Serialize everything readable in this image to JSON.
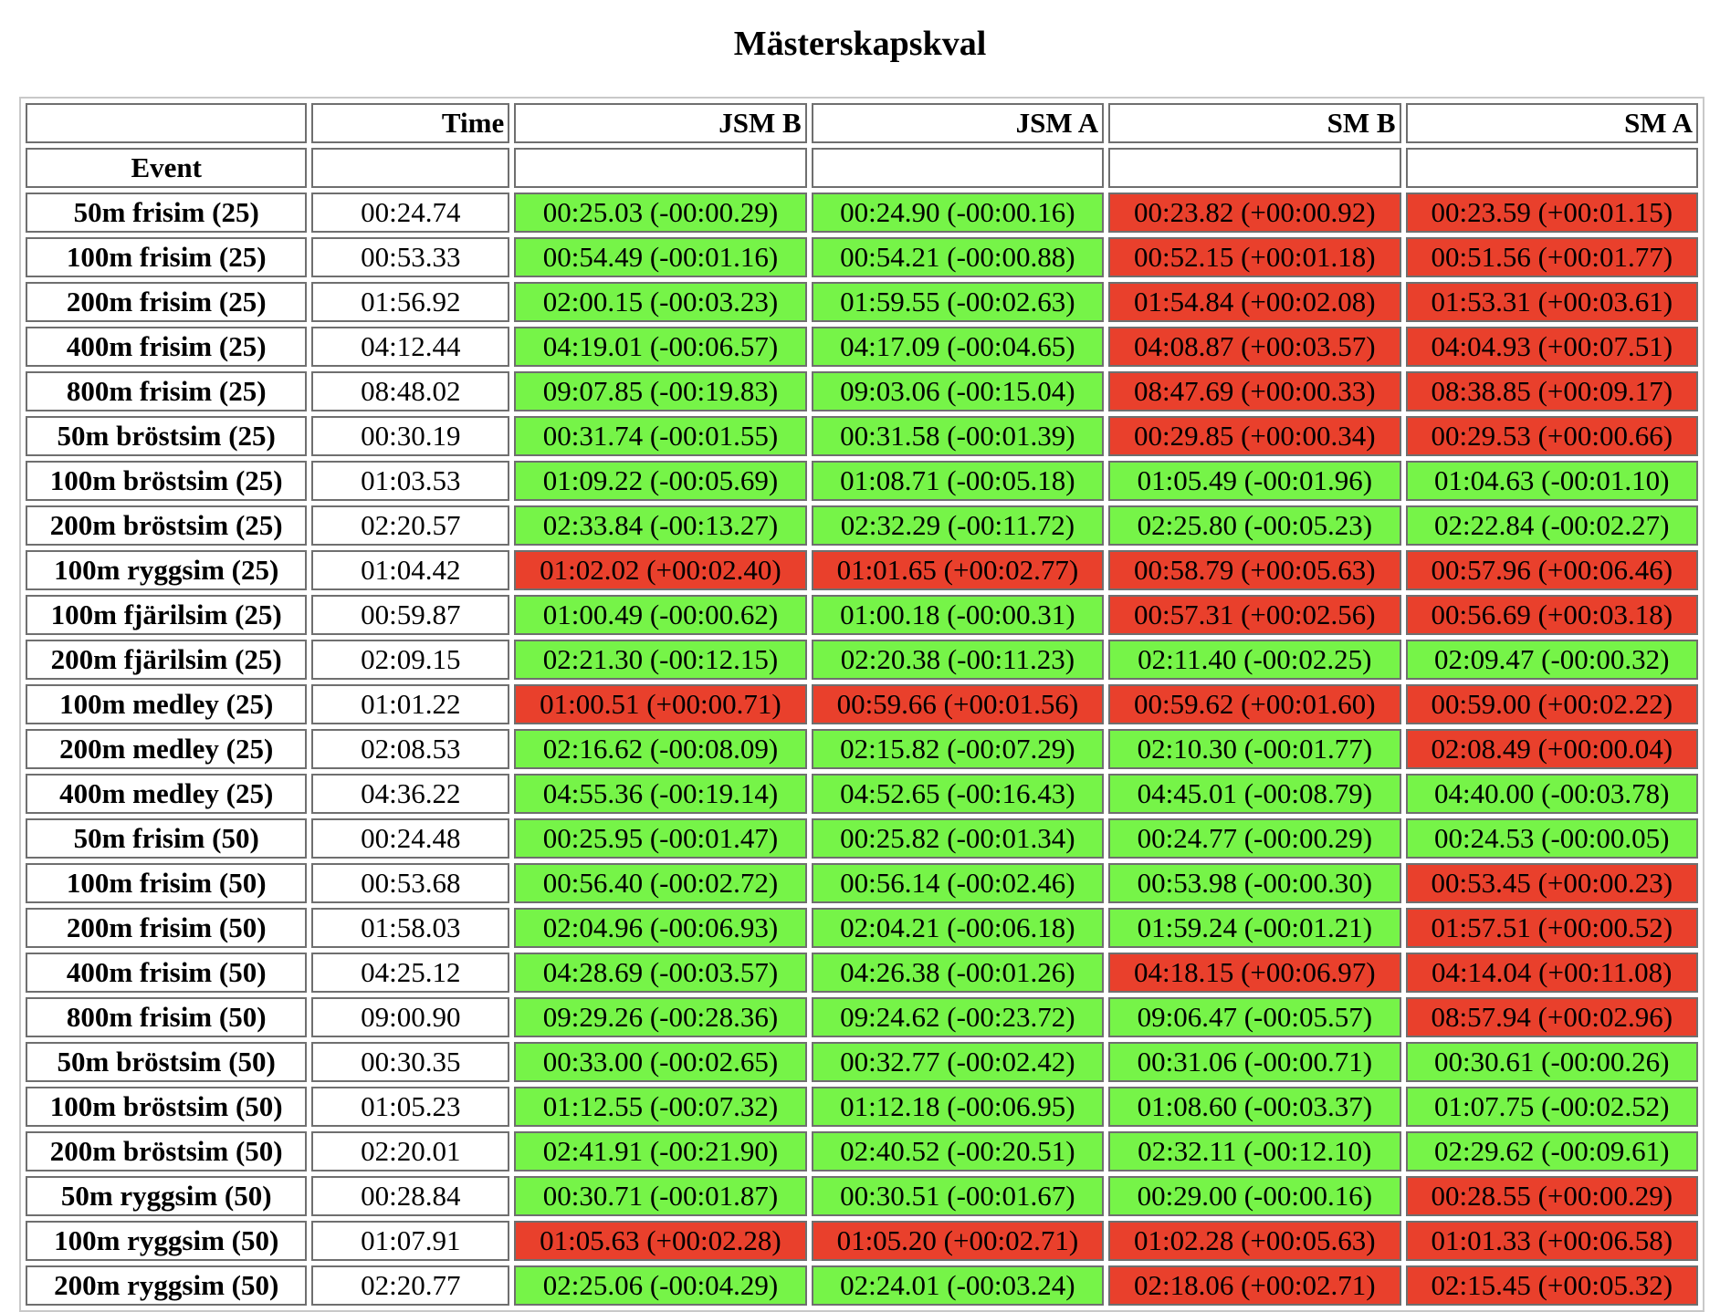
{
  "title": "Mästerskapskval",
  "columns": {
    "event": "Event",
    "time": "Time",
    "qualifications": [
      "JSM B",
      "JSM A",
      "SM B",
      "SM A"
    ]
  },
  "colors": {
    "pass": "#76f448",
    "fail": "#e9402c"
  },
  "rows": [
    {
      "event": "50m frisim (25)",
      "time": "00:24.74",
      "q": [
        {
          "text": "00:25.03 (-00:00.29)",
          "status": "pass"
        },
        {
          "text": "00:24.90 (-00:00.16)",
          "status": "pass"
        },
        {
          "text": "00:23.82 (+00:00.92)",
          "status": "fail"
        },
        {
          "text": "00:23.59 (+00:01.15)",
          "status": "fail"
        }
      ]
    },
    {
      "event": "100m frisim (25)",
      "time": "00:53.33",
      "q": [
        {
          "text": "00:54.49 (-00:01.16)",
          "status": "pass"
        },
        {
          "text": "00:54.21 (-00:00.88)",
          "status": "pass"
        },
        {
          "text": "00:52.15 (+00:01.18)",
          "status": "fail"
        },
        {
          "text": "00:51.56 (+00:01.77)",
          "status": "fail"
        }
      ]
    },
    {
      "event": "200m frisim (25)",
      "time": "01:56.92",
      "q": [
        {
          "text": "02:00.15 (-00:03.23)",
          "status": "pass"
        },
        {
          "text": "01:59.55 (-00:02.63)",
          "status": "pass"
        },
        {
          "text": "01:54.84 (+00:02.08)",
          "status": "fail"
        },
        {
          "text": "01:53.31 (+00:03.61)",
          "status": "fail"
        }
      ]
    },
    {
      "event": "400m frisim (25)",
      "time": "04:12.44",
      "q": [
        {
          "text": "04:19.01 (-00:06.57)",
          "status": "pass"
        },
        {
          "text": "04:17.09 (-00:04.65)",
          "status": "pass"
        },
        {
          "text": "04:08.87 (+00:03.57)",
          "status": "fail"
        },
        {
          "text": "04:04.93 (+00:07.51)",
          "status": "fail"
        }
      ]
    },
    {
      "event": "800m frisim (25)",
      "time": "08:48.02",
      "q": [
        {
          "text": "09:07.85 (-00:19.83)",
          "status": "pass"
        },
        {
          "text": "09:03.06 (-00:15.04)",
          "status": "pass"
        },
        {
          "text": "08:47.69 (+00:00.33)",
          "status": "fail"
        },
        {
          "text": "08:38.85 (+00:09.17)",
          "status": "fail"
        }
      ]
    },
    {
      "event": "50m bröstsim (25)",
      "time": "00:30.19",
      "q": [
        {
          "text": "00:31.74 (-00:01.55)",
          "status": "pass"
        },
        {
          "text": "00:31.58 (-00:01.39)",
          "status": "pass"
        },
        {
          "text": "00:29.85 (+00:00.34)",
          "status": "fail"
        },
        {
          "text": "00:29.53 (+00:00.66)",
          "status": "fail"
        }
      ]
    },
    {
      "event": "100m bröstsim (25)",
      "time": "01:03.53",
      "q": [
        {
          "text": "01:09.22 (-00:05.69)",
          "status": "pass"
        },
        {
          "text": "01:08.71 (-00:05.18)",
          "status": "pass"
        },
        {
          "text": "01:05.49 (-00:01.96)",
          "status": "pass"
        },
        {
          "text": "01:04.63 (-00:01.10)",
          "status": "pass"
        }
      ]
    },
    {
      "event": "200m bröstsim (25)",
      "time": "02:20.57",
      "q": [
        {
          "text": "02:33.84 (-00:13.27)",
          "status": "pass"
        },
        {
          "text": "02:32.29 (-00:11.72)",
          "status": "pass"
        },
        {
          "text": "02:25.80 (-00:05.23)",
          "status": "pass"
        },
        {
          "text": "02:22.84 (-00:02.27)",
          "status": "pass"
        }
      ]
    },
    {
      "event": "100m ryggsim (25)",
      "time": "01:04.42",
      "q": [
        {
          "text": "01:02.02 (+00:02.40)",
          "status": "fail"
        },
        {
          "text": "01:01.65 (+00:02.77)",
          "status": "fail"
        },
        {
          "text": "00:58.79 (+00:05.63)",
          "status": "fail"
        },
        {
          "text": "00:57.96 (+00:06.46)",
          "status": "fail"
        }
      ]
    },
    {
      "event": "100m fjärilsim (25)",
      "time": "00:59.87",
      "q": [
        {
          "text": "01:00.49 (-00:00.62)",
          "status": "pass"
        },
        {
          "text": "01:00.18 (-00:00.31)",
          "status": "pass"
        },
        {
          "text": "00:57.31 (+00:02.56)",
          "status": "fail"
        },
        {
          "text": "00:56.69 (+00:03.18)",
          "status": "fail"
        }
      ]
    },
    {
      "event": "200m fjärilsim (25)",
      "time": "02:09.15",
      "q": [
        {
          "text": "02:21.30 (-00:12.15)",
          "status": "pass"
        },
        {
          "text": "02:20.38 (-00:11.23)",
          "status": "pass"
        },
        {
          "text": "02:11.40 (-00:02.25)",
          "status": "pass"
        },
        {
          "text": "02:09.47 (-00:00.32)",
          "status": "pass"
        }
      ]
    },
    {
      "event": "100m medley (25)",
      "time": "01:01.22",
      "q": [
        {
          "text": "01:00.51 (+00:00.71)",
          "status": "fail"
        },
        {
          "text": "00:59.66 (+00:01.56)",
          "status": "fail"
        },
        {
          "text": "00:59.62 (+00:01.60)",
          "status": "fail"
        },
        {
          "text": "00:59.00 (+00:02.22)",
          "status": "fail"
        }
      ]
    },
    {
      "event": "200m medley (25)",
      "time": "02:08.53",
      "q": [
        {
          "text": "02:16.62 (-00:08.09)",
          "status": "pass"
        },
        {
          "text": "02:15.82 (-00:07.29)",
          "status": "pass"
        },
        {
          "text": "02:10.30 (-00:01.77)",
          "status": "pass"
        },
        {
          "text": "02:08.49 (+00:00.04)",
          "status": "fail"
        }
      ]
    },
    {
      "event": "400m medley (25)",
      "time": "04:36.22",
      "q": [
        {
          "text": "04:55.36 (-00:19.14)",
          "status": "pass"
        },
        {
          "text": "04:52.65 (-00:16.43)",
          "status": "pass"
        },
        {
          "text": "04:45.01 (-00:08.79)",
          "status": "pass"
        },
        {
          "text": "04:40.00 (-00:03.78)",
          "status": "pass"
        }
      ]
    },
    {
      "event": "50m frisim (50)",
      "time": "00:24.48",
      "q": [
        {
          "text": "00:25.95 (-00:01.47)",
          "status": "pass"
        },
        {
          "text": "00:25.82 (-00:01.34)",
          "status": "pass"
        },
        {
          "text": "00:24.77 (-00:00.29)",
          "status": "pass"
        },
        {
          "text": "00:24.53 (-00:00.05)",
          "status": "pass"
        }
      ]
    },
    {
      "event": "100m frisim (50)",
      "time": "00:53.68",
      "q": [
        {
          "text": "00:56.40 (-00:02.72)",
          "status": "pass"
        },
        {
          "text": "00:56.14 (-00:02.46)",
          "status": "pass"
        },
        {
          "text": "00:53.98 (-00:00.30)",
          "status": "pass"
        },
        {
          "text": "00:53.45 (+00:00.23)",
          "status": "fail"
        }
      ]
    },
    {
      "event": "200m frisim (50)",
      "time": "01:58.03",
      "q": [
        {
          "text": "02:04.96 (-00:06.93)",
          "status": "pass"
        },
        {
          "text": "02:04.21 (-00:06.18)",
          "status": "pass"
        },
        {
          "text": "01:59.24 (-00:01.21)",
          "status": "pass"
        },
        {
          "text": "01:57.51 (+00:00.52)",
          "status": "fail"
        }
      ]
    },
    {
      "event": "400m frisim (50)",
      "time": "04:25.12",
      "q": [
        {
          "text": "04:28.69 (-00:03.57)",
          "status": "pass"
        },
        {
          "text": "04:26.38 (-00:01.26)",
          "status": "pass"
        },
        {
          "text": "04:18.15 (+00:06.97)",
          "status": "fail"
        },
        {
          "text": "04:14.04 (+00:11.08)",
          "status": "fail"
        }
      ]
    },
    {
      "event": "800m frisim (50)",
      "time": "09:00.90",
      "q": [
        {
          "text": "09:29.26 (-00:28.36)",
          "status": "pass"
        },
        {
          "text": "09:24.62 (-00:23.72)",
          "status": "pass"
        },
        {
          "text": "09:06.47 (-00:05.57)",
          "status": "pass"
        },
        {
          "text": "08:57.94 (+00:02.96)",
          "status": "fail"
        }
      ]
    },
    {
      "event": "50m bröstsim (50)",
      "time": "00:30.35",
      "q": [
        {
          "text": "00:33.00 (-00:02.65)",
          "status": "pass"
        },
        {
          "text": "00:32.77 (-00:02.42)",
          "status": "pass"
        },
        {
          "text": "00:31.06 (-00:00.71)",
          "status": "pass"
        },
        {
          "text": "00:30.61 (-00:00.26)",
          "status": "pass"
        }
      ]
    },
    {
      "event": "100m bröstsim (50)",
      "time": "01:05.23",
      "q": [
        {
          "text": "01:12.55 (-00:07.32)",
          "status": "pass"
        },
        {
          "text": "01:12.18 (-00:06.95)",
          "status": "pass"
        },
        {
          "text": "01:08.60 (-00:03.37)",
          "status": "pass"
        },
        {
          "text": "01:07.75 (-00:02.52)",
          "status": "pass"
        }
      ]
    },
    {
      "event": "200m bröstsim (50)",
      "time": "02:20.01",
      "q": [
        {
          "text": "02:41.91 (-00:21.90)",
          "status": "pass"
        },
        {
          "text": "02:40.52 (-00:20.51)",
          "status": "pass"
        },
        {
          "text": "02:32.11 (-00:12.10)",
          "status": "pass"
        },
        {
          "text": "02:29.62 (-00:09.61)",
          "status": "pass"
        }
      ]
    },
    {
      "event": "50m ryggsim (50)",
      "time": "00:28.84",
      "q": [
        {
          "text": "00:30.71 (-00:01.87)",
          "status": "pass"
        },
        {
          "text": "00:30.51 (-00:01.67)",
          "status": "pass"
        },
        {
          "text": "00:29.00 (-00:00.16)",
          "status": "pass"
        },
        {
          "text": "00:28.55 (+00:00.29)",
          "status": "fail"
        }
      ]
    },
    {
      "event": "100m ryggsim (50)",
      "time": "01:07.91",
      "q": [
        {
          "text": "01:05.63 (+00:02.28)",
          "status": "fail"
        },
        {
          "text": "01:05.20 (+00:02.71)",
          "status": "fail"
        },
        {
          "text": "01:02.28 (+00:05.63)",
          "status": "fail"
        },
        {
          "text": "01:01.33 (+00:06.58)",
          "status": "fail"
        }
      ]
    },
    {
      "event": "200m ryggsim (50)",
      "time": "02:20.77",
      "q": [
        {
          "text": "02:25.06 (-00:04.29)",
          "status": "pass"
        },
        {
          "text": "02:24.01 (-00:03.24)",
          "status": "pass"
        },
        {
          "text": "02:18.06 (+00:02.71)",
          "status": "fail"
        },
        {
          "text": "02:15.45 (+00:05.32)",
          "status": "fail"
        }
      ]
    }
  ]
}
